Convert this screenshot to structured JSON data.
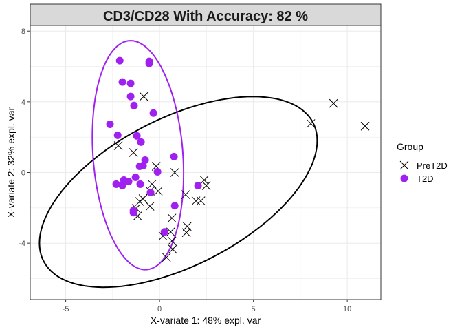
{
  "chart_data": {
    "type": "scatter",
    "title": "CD3/CD28 With Accuracy: 82 %",
    "xlabel": "X-variate 1: 48% expl. var",
    "ylabel": "X-variate 2: 32% expl. var",
    "xlim": [
      -6.89,
      11.79
    ],
    "ylim": [
      -7.19,
      8.32
    ],
    "xticks": [
      -5,
      0,
      5,
      10
    ],
    "yticks": [
      -4,
      0,
      4,
      8
    ],
    "grid": true,
    "legend": {
      "title": "Group",
      "placement": "right"
    },
    "series": [
      {
        "name": "PreT2D",
        "marker": "x",
        "color": "#000000",
        "ellipse": {
          "center": [
            1.0,
            -1.1
          ],
          "axis_a": [
            7.4,
            2.9
          ],
          "axis_b": [
            0,
            4.55
          ]
        },
        "points": [
          [
            -0.84,
            4.3
          ],
          [
            -2.2,
            1.52
          ],
          [
            -1.39,
            1.13
          ],
          [
            -0.18,
            0.35
          ],
          [
            0.81,
            0.0
          ],
          [
            2.38,
            -0.43
          ],
          [
            2.49,
            -0.74
          ],
          [
            -0.4,
            -0.66
          ],
          [
            -0.51,
            -1.05
          ],
          [
            -0.07,
            -1.05
          ],
          [
            1.39,
            -1.25
          ],
          [
            -0.88,
            -1.48
          ],
          [
            -1.06,
            -1.64
          ],
          [
            -0.51,
            -1.91
          ],
          [
            -1.25,
            -2.03
          ],
          [
            -1.17,
            -2.46
          ],
          [
            0.66,
            -2.58
          ],
          [
            1.47,
            -3.05
          ],
          [
            1.43,
            -3.4
          ],
          [
            1.94,
            -1.6
          ],
          [
            2.2,
            -1.6
          ],
          [
            0.59,
            -3.36
          ],
          [
            0.18,
            -3.59
          ],
          [
            0.66,
            -3.87
          ],
          [
            0.7,
            -4.34
          ],
          [
            0.37,
            -4.8
          ],
          [
            8.06,
            2.77
          ],
          [
            9.27,
            3.91
          ],
          [
            10.95,
            2.62
          ]
        ]
      },
      {
        "name": "T2D",
        "marker": "circle",
        "color": "#A020F0",
        "ellipse": {
          "center": [
            -1.15,
            0.98
          ],
          "axis_a": [
            2.4,
            0
          ],
          "axis_b": [
            -0.39,
            6.48
          ]
        },
        "points": [
          [
            -2.12,
            6.33
          ],
          [
            -0.55,
            6.29
          ],
          [
            -0.55,
            6.17
          ],
          [
            -1.98,
            5.12
          ],
          [
            -1.54,
            5.04
          ],
          [
            -1.54,
            4.3
          ],
          [
            -1.36,
            3.79
          ],
          [
            -0.33,
            3.36
          ],
          [
            -2.64,
            2.73
          ],
          [
            -2.23,
            2.11
          ],
          [
            -1.21,
            2.07
          ],
          [
            -0.99,
            1.72
          ],
          [
            0.77,
            0.9
          ],
          [
            -0.77,
            0.7
          ],
          [
            -0.88,
            0.39
          ],
          [
            -1.06,
            0.35
          ],
          [
            -0.11,
            0.04
          ],
          [
            -1.28,
            -0.27
          ],
          [
            -2.31,
            -0.66
          ],
          [
            -1.9,
            -0.43
          ],
          [
            -1.65,
            -0.51
          ],
          [
            -1.98,
            -0.74
          ],
          [
            -1.03,
            -0.66
          ],
          [
            -0.48,
            -1.13
          ],
          [
            2.05,
            -0.74
          ],
          [
            0.81,
            -1.88
          ],
          [
            -1.39,
            -2.15
          ],
          [
            -1.39,
            -2.27
          ],
          [
            0.26,
            -3.36
          ]
        ]
      }
    ]
  }
}
